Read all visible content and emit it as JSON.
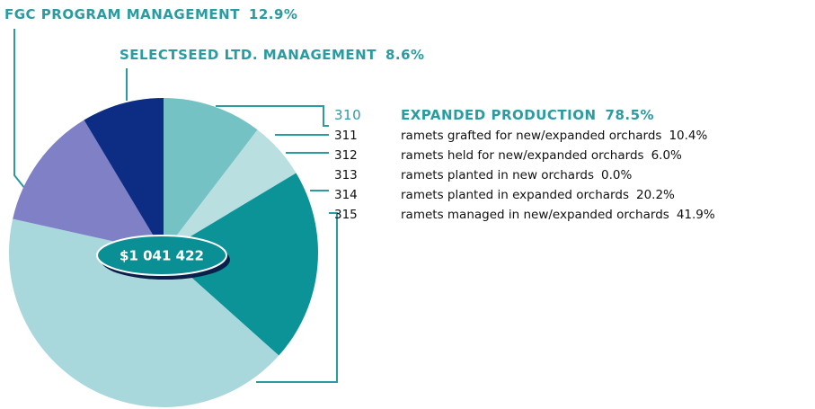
{
  "chart_data": {
    "type": "pie",
    "center_label": "$1 041 422",
    "group": {
      "code": "310",
      "name": "EXPANDED PRODUCTION",
      "value_label": "78.5%"
    },
    "categories": [
      "ramets grafted for new/expanded orchards",
      "ramets held for new/expanded orchards",
      "ramets planted in new orchards",
      "ramets planted in expanded orchards",
      "ramets managed in new/expanded orchards",
      "FGC PROGRAM MANAGEMENT",
      "SELECTSEED LTD. MANAGEMENT"
    ],
    "codes": [
      "311",
      "312",
      "313",
      "314",
      "315",
      null,
      null
    ],
    "values": [
      10.4,
      6.0,
      0.0,
      20.2,
      41.9,
      12.9,
      8.6
    ],
    "value_labels": [
      "10.4%",
      "6.0%",
      "0.0%",
      "20.2%",
      "41.9%",
      "12.9%",
      "8.6%"
    ],
    "colors": [
      "#74c2c4",
      "#b9dfe0",
      "#9fd2d6",
      "#0c9397",
      "#a9d8dc",
      "#7f80c6",
      "#0d2d84"
    ]
  }
}
